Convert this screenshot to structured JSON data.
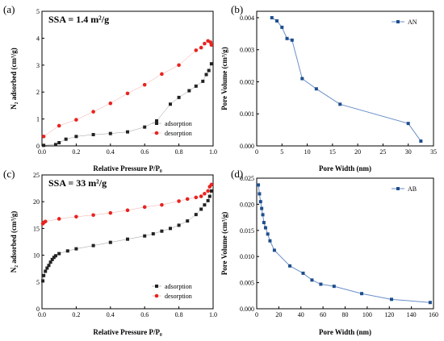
{
  "chart_data": [
    {
      "panel": "(a)",
      "type": "scatter",
      "annotation": "SSA = 1.4 m²/g",
      "xlabel": "Relative Pressure P/P₀",
      "ylabel": "N₂ adsorbed (cm³/g)",
      "xlim": [
        0,
        1.0
      ],
      "ylim": [
        0,
        5
      ],
      "xticks": [
        "0.0",
        "0.2",
        "0.4",
        "0.6",
        "0.8",
        "1.0"
      ],
      "yticks": [
        "0",
        "1",
        "2",
        "3",
        "4",
        "5"
      ],
      "legend_position": "bottom-right",
      "colors": {
        "adsorption": "#222222",
        "desorption": "#e8231f"
      },
      "series": [
        {
          "name": "adsorption",
          "x": [
            0.01,
            0.08,
            0.1,
            0.14,
            0.2,
            0.3,
            0.4,
            0.5,
            0.6,
            0.67,
            0.75,
            0.8,
            0.86,
            0.9,
            0.94,
            0.96,
            0.975,
            0.99
          ],
          "y": [
            0.02,
            0.05,
            0.12,
            0.25,
            0.35,
            0.42,
            0.46,
            0.52,
            0.7,
            0.93,
            1.55,
            1.8,
            2.05,
            2.22,
            2.4,
            2.65,
            2.8,
            3.05
          ]
        },
        {
          "name": "desorption",
          "x": [
            0.01,
            0.1,
            0.2,
            0.3,
            0.4,
            0.5,
            0.6,
            0.7,
            0.8,
            0.9,
            0.93,
            0.95,
            0.97,
            0.985,
            0.99
          ],
          "y": [
            0.35,
            0.75,
            0.97,
            1.27,
            1.58,
            1.95,
            2.27,
            2.67,
            3.0,
            3.55,
            3.65,
            3.8,
            3.9,
            3.85,
            3.75
          ]
        }
      ]
    },
    {
      "panel": "(b)",
      "type": "line",
      "xlabel": "Pore Width (nm)",
      "ylabel": "Pore Volume (cm³/g)",
      "xlim": [
        0,
        35
      ],
      "ylim": [
        0,
        0.0042
      ],
      "xticks": [
        "0",
        "5",
        "10",
        "15",
        "20",
        "25",
        "30",
        "35"
      ],
      "yticks": [
        "0.000",
        "0.001",
        "0.002",
        "0.003",
        "0.004"
      ],
      "legend_position": "top-right",
      "colors": {
        "AN": "#1f4e8c"
      },
      "series": [
        {
          "name": "AN",
          "x": [
            3,
            4,
            5,
            6,
            7,
            9,
            11.8,
            16.5,
            30,
            32.5
          ],
          "y": [
            0.004,
            0.0039,
            0.0037,
            0.00335,
            0.0033,
            0.0021,
            0.00178,
            0.0013,
            0.0007,
            0.00015
          ]
        }
      ]
    },
    {
      "panel": "(c)",
      "type": "scatter",
      "annotation": "SSA = 33 m²/g",
      "xlabel": "Relative Pressure P/P₀",
      "ylabel": "N₂ adsorbed (cm³/g)",
      "xlim": [
        0,
        1.0
      ],
      "ylim": [
        0,
        25
      ],
      "xticks": [
        "0.0",
        "0.2",
        "0.4",
        "0.6",
        "0.8",
        "1.0"
      ],
      "yticks": [
        "0",
        "5",
        "10",
        "15",
        "20",
        "25"
      ],
      "legend_position": "bottom-right",
      "colors": {
        "adsorption": "#222222",
        "desorption": "#e8231f"
      },
      "series": [
        {
          "name": "adsorption",
          "x": [
            0.005,
            0.01,
            0.02,
            0.03,
            0.04,
            0.05,
            0.06,
            0.07,
            0.08,
            0.1,
            0.15,
            0.2,
            0.3,
            0.4,
            0.5,
            0.6,
            0.65,
            0.7,
            0.75,
            0.8,
            0.85,
            0.9,
            0.93,
            0.95,
            0.97,
            0.98,
            0.99
          ],
          "y": [
            5.2,
            6.2,
            7.0,
            7.6,
            8.1,
            8.7,
            9.2,
            9.6,
            9.9,
            10.3,
            10.8,
            11.2,
            11.8,
            12.4,
            13.0,
            13.6,
            14.0,
            14.5,
            15.0,
            15.6,
            16.4,
            17.6,
            18.6,
            19.4,
            20.2,
            21.0,
            22.0
          ]
        },
        {
          "name": "desorption",
          "x": [
            0.005,
            0.01,
            0.02,
            0.1,
            0.2,
            0.3,
            0.4,
            0.5,
            0.6,
            0.7,
            0.8,
            0.85,
            0.9,
            0.93,
            0.95,
            0.97,
            0.98,
            0.99
          ],
          "y": [
            15.9,
            16.1,
            16.3,
            16.8,
            17.2,
            17.5,
            17.9,
            18.4,
            19.0,
            19.4,
            20.1,
            20.5,
            20.8,
            21.0,
            21.5,
            22.0,
            22.8,
            23.2
          ]
        }
      ]
    },
    {
      "panel": "(d)",
      "type": "line",
      "xlabel": "Pore Width (nm)",
      "ylabel": "Pore Volume (cm³/g)",
      "xlim": [
        0,
        160
      ],
      "ylim": [
        0,
        0.025
      ],
      "xticks": [
        "0",
        "20",
        "40",
        "60",
        "80",
        "100",
        "120",
        "140",
        "160"
      ],
      "yticks": [
        "0.000",
        "0.005",
        "0.010",
        "0.015",
        "0.020",
        "0.025"
      ],
      "legend_position": "top-right",
      "colors": {
        "AB": "#1f4e8c"
      },
      "series": [
        {
          "name": "AB",
          "x": [
            1.5,
            2.5,
            3.5,
            4.5,
            5.5,
            6.5,
            8,
            10,
            12,
            16,
            30,
            42,
            50,
            58,
            70,
            95,
            122,
            157
          ],
          "y": [
            0.0237,
            0.022,
            0.0205,
            0.0192,
            0.018,
            0.0165,
            0.0155,
            0.0143,
            0.013,
            0.0112,
            0.0082,
            0.0068,
            0.0055,
            0.0047,
            0.0043,
            0.0029,
            0.0018,
            0.0012
          ]
        }
      ]
    }
  ]
}
